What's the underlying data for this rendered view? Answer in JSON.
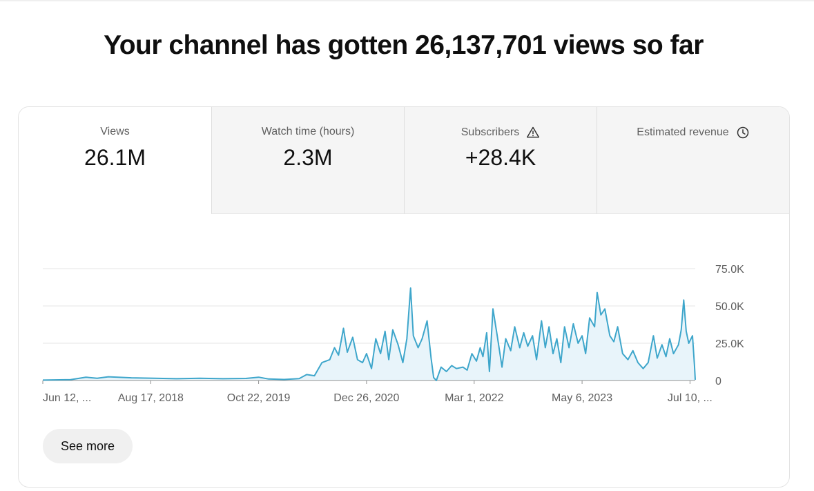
{
  "headline": "Your channel has gotten 26,137,701 views so far",
  "tabs": [
    {
      "label": "Views",
      "value": "26.1M",
      "icon": null,
      "active": true
    },
    {
      "label": "Watch time (hours)",
      "value": "2.3M",
      "icon": null,
      "active": false
    },
    {
      "label": "Subscribers",
      "value": "+28.4K",
      "icon": "warning-icon",
      "active": false
    },
    {
      "label": "Estimated revenue",
      "value": "",
      "icon": "clock-icon",
      "active": false
    }
  ],
  "see_more_label": "See more",
  "colors": {
    "line": "#3ea6cb",
    "fill": "#e8f4fa",
    "grid": "#e5e5e5",
    "axis": "#909090"
  },
  "chart_data": {
    "type": "area",
    "metric": "Views",
    "x_range": [
      "2017-06-12",
      "2024-07-31"
    ],
    "y_range": [
      0,
      75000
    ],
    "y_ticks": [
      0,
      25000,
      50000,
      75000
    ],
    "y_tick_labels": [
      "0",
      "25.0K",
      "50.0K",
      "75.0K"
    ],
    "x_tick_labels": [
      {
        "label": "Jun 12, ...",
        "date": "2017-06-12"
      },
      {
        "label": "Aug 17, 2018",
        "date": "2018-08-17"
      },
      {
        "label": "Oct 22, 2019",
        "date": "2019-10-22"
      },
      {
        "label": "Dec 26, 2020",
        "date": "2020-12-26"
      },
      {
        "label": "Mar 1, 2022",
        "date": "2022-03-01"
      },
      {
        "label": "May 6, 2023",
        "date": "2023-05-06"
      },
      {
        "label": "Jul 10, ...",
        "date": "2024-07-10"
      }
    ],
    "grid": "horizontal",
    "series": [
      {
        "points": [
          [
            "2017-06-12",
            300
          ],
          [
            "2017-10-01",
            600
          ],
          [
            "2017-12-01",
            2200
          ],
          [
            "2018-01-15",
            1500
          ],
          [
            "2018-03-01",
            2500
          ],
          [
            "2018-06-01",
            1800
          ],
          [
            "2018-09-01",
            1500
          ],
          [
            "2018-12-01",
            1200
          ],
          [
            "2019-03-01",
            1500
          ],
          [
            "2019-06-01",
            1200
          ],
          [
            "2019-09-01",
            1400
          ],
          [
            "2019-10-22",
            2200
          ],
          [
            "2019-12-01",
            1000
          ],
          [
            "2020-02-01",
            700
          ],
          [
            "2020-04-01",
            1300
          ],
          [
            "2020-05-01",
            4000
          ],
          [
            "2020-06-01",
            3200
          ],
          [
            "2020-07-01",
            12000
          ],
          [
            "2020-08-01",
            14000
          ],
          [
            "2020-08-20",
            22000
          ],
          [
            "2020-09-05",
            17000
          ],
          [
            "2020-09-25",
            35000
          ],
          [
            "2020-10-10",
            19000
          ],
          [
            "2020-11-01",
            29000
          ],
          [
            "2020-11-20",
            14000
          ],
          [
            "2020-12-10",
            12000
          ],
          [
            "2020-12-26",
            18000
          ],
          [
            "2021-01-15",
            8000
          ],
          [
            "2021-02-01",
            28000
          ],
          [
            "2021-02-20",
            18000
          ],
          [
            "2021-03-10",
            33000
          ],
          [
            "2021-03-25",
            14000
          ],
          [
            "2021-04-10",
            34000
          ],
          [
            "2021-05-01",
            24000
          ],
          [
            "2021-05-20",
            12000
          ],
          [
            "2021-06-05",
            28000
          ],
          [
            "2021-06-20",
            62000
          ],
          [
            "2021-07-01",
            30000
          ],
          [
            "2021-07-20",
            22000
          ],
          [
            "2021-08-05",
            28000
          ],
          [
            "2021-08-25",
            40000
          ],
          [
            "2021-09-10",
            15000
          ],
          [
            "2021-09-20",
            2000
          ],
          [
            "2021-10-01",
            0
          ],
          [
            "2021-10-20",
            9000
          ],
          [
            "2021-11-10",
            6000
          ],
          [
            "2021-12-01",
            10000
          ],
          [
            "2021-12-20",
            8000
          ],
          [
            "2022-01-15",
            9000
          ],
          [
            "2022-02-01",
            7000
          ],
          [
            "2022-02-20",
            18000
          ],
          [
            "2022-03-10",
            13000
          ],
          [
            "2022-03-25",
            22000
          ],
          [
            "2022-04-05",
            16000
          ],
          [
            "2022-04-20",
            32000
          ],
          [
            "2022-05-01",
            6000
          ],
          [
            "2022-05-15",
            48000
          ],
          [
            "2022-06-01",
            30000
          ],
          [
            "2022-06-20",
            9000
          ],
          [
            "2022-07-05",
            28000
          ],
          [
            "2022-07-25",
            20000
          ],
          [
            "2022-08-10",
            36000
          ],
          [
            "2022-08-30",
            22000
          ],
          [
            "2022-09-15",
            32000
          ],
          [
            "2022-10-01",
            23000
          ],
          [
            "2022-10-20",
            30000
          ],
          [
            "2022-11-05",
            14000
          ],
          [
            "2022-11-25",
            40000
          ],
          [
            "2022-12-10",
            22000
          ],
          [
            "2022-12-25",
            36000
          ],
          [
            "2023-01-10",
            18000
          ],
          [
            "2023-01-25",
            28000
          ],
          [
            "2023-02-10",
            12000
          ],
          [
            "2023-02-25",
            36000
          ],
          [
            "2023-03-15",
            22000
          ],
          [
            "2023-04-01",
            38000
          ],
          [
            "2023-04-20",
            25000
          ],
          [
            "2023-05-06",
            30000
          ],
          [
            "2023-05-20",
            18000
          ],
          [
            "2023-06-05",
            42000
          ],
          [
            "2023-06-25",
            36000
          ],
          [
            "2023-07-05",
            59000
          ],
          [
            "2023-07-20",
            44000
          ],
          [
            "2023-08-05",
            48000
          ],
          [
            "2023-08-25",
            30000
          ],
          [
            "2023-09-10",
            26000
          ],
          [
            "2023-09-25",
            36000
          ],
          [
            "2023-10-15",
            18000
          ],
          [
            "2023-11-05",
            14000
          ],
          [
            "2023-11-25",
            20000
          ],
          [
            "2023-12-15",
            12000
          ],
          [
            "2024-01-05",
            8000
          ],
          [
            "2024-01-25",
            12000
          ],
          [
            "2024-02-15",
            30000
          ],
          [
            "2024-03-01",
            15000
          ],
          [
            "2024-03-20",
            24000
          ],
          [
            "2024-04-05",
            16000
          ],
          [
            "2024-04-20",
            28000
          ],
          [
            "2024-05-05",
            18000
          ],
          [
            "2024-05-25",
            24000
          ],
          [
            "2024-06-05",
            34000
          ],
          [
            "2024-06-15",
            54000
          ],
          [
            "2024-06-25",
            33000
          ],
          [
            "2024-07-05",
            25000
          ],
          [
            "2024-07-20",
            30000
          ],
          [
            "2024-07-28",
            10000
          ],
          [
            "2024-07-31",
            500
          ]
        ]
      }
    ]
  }
}
